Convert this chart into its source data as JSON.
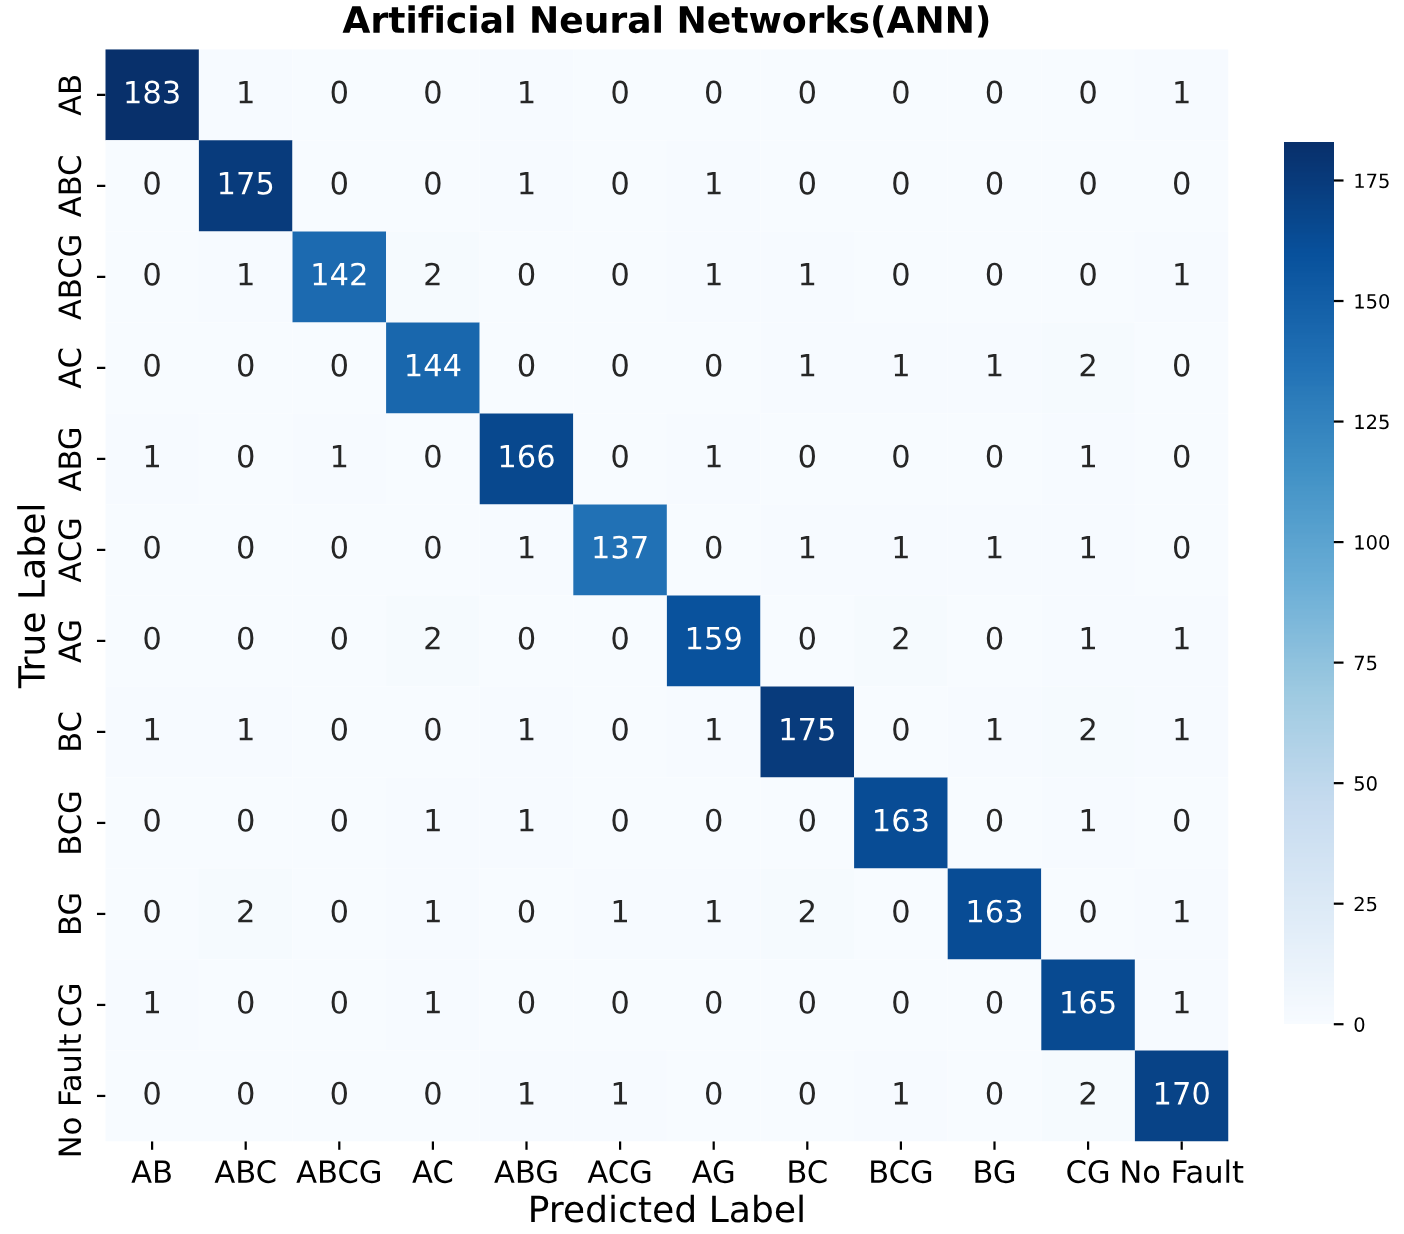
{
  "chart_data": {
    "type": "heatmap",
    "title": "Artificial Neural Networks(ANN)",
    "xlabel": "Predicted Label",
    "ylabel": "True Label",
    "categories": [
      "AB",
      "ABC",
      "ABCG",
      "AC",
      "ABG",
      "ACG",
      "AG",
      "BC",
      "BCG",
      "BG",
      "CG",
      "No Fault"
    ],
    "y_categories": [
      "AB",
      "ABC",
      "ABCG",
      "AC",
      "ABG",
      "ACG",
      "AG",
      "BC",
      "BCG",
      "BG",
      "CG",
      "No Fault"
    ],
    "cells": [
      [
        183,
        1,
        0,
        0,
        1,
        0,
        0,
        0,
        0,
        0,
        0,
        1
      ],
      [
        0,
        175,
        0,
        0,
        1,
        0,
        1,
        0,
        0,
        0,
        0,
        0
      ],
      [
        0,
        1,
        142,
        2,
        0,
        0,
        1,
        1,
        0,
        0,
        0,
        1
      ],
      [
        0,
        0,
        0,
        144,
        0,
        0,
        0,
        1,
        1,
        1,
        2,
        0
      ],
      [
        1,
        0,
        1,
        0,
        166,
        0,
        1,
        0,
        0,
        0,
        1,
        0
      ],
      [
        0,
        0,
        0,
        0,
        1,
        137,
        0,
        1,
        1,
        1,
        1,
        0
      ],
      [
        0,
        0,
        0,
        2,
        0,
        0,
        159,
        0,
        2,
        0,
        1,
        1
      ],
      [
        1,
        1,
        0,
        0,
        1,
        0,
        1,
        175,
        0,
        1,
        2,
        1
      ],
      [
        0,
        0,
        0,
        1,
        1,
        0,
        0,
        0,
        163,
        0,
        1,
        0
      ],
      [
        0,
        2,
        0,
        1,
        0,
        1,
        1,
        2,
        0,
        163,
        0,
        1
      ],
      [
        1,
        0,
        0,
        1,
        0,
        0,
        0,
        0,
        0,
        0,
        165,
        1
      ],
      [
        0,
        0,
        0,
        0,
        1,
        1,
        0,
        0,
        1,
        0,
        2,
        170
      ]
    ],
    "data_labels": true,
    "clim": [
      0,
      183
    ],
    "cticks": [
      0,
      25,
      50,
      75,
      100,
      125,
      150,
      175
    ]
  }
}
